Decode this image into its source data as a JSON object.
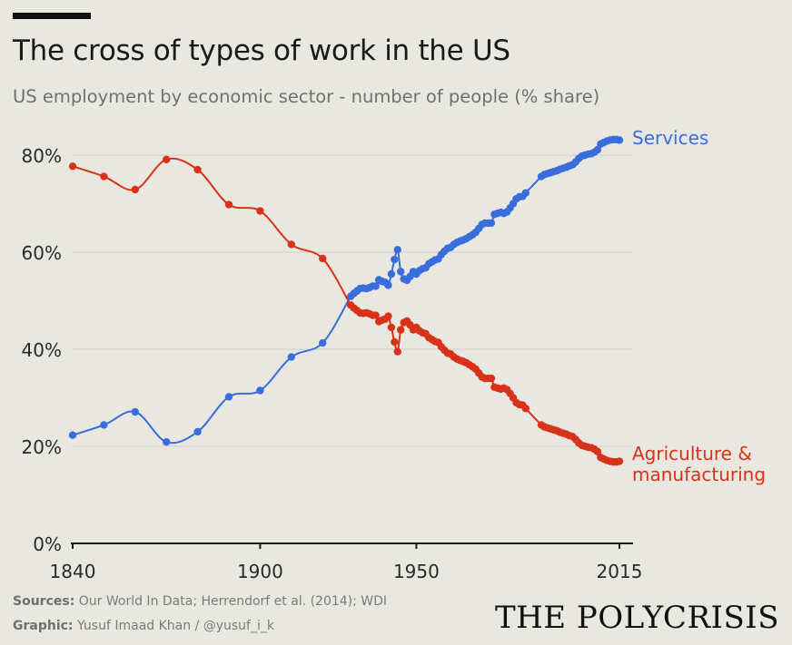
{
  "header": {
    "title": "The cross of types of work in the US",
    "subtitle": "US employment by economic sector - number of people (% share)"
  },
  "footer": {
    "sources_label": "Sources:",
    "sources_text": "Our World In Data; Herrendorf et al. (2014); WDI",
    "graphic_label": "Graphic:",
    "graphic_text": "Yusuf Imaad Khan / @yusuf_i_k"
  },
  "brand": {
    "name": "THE POLYCRISIS"
  },
  "chart_data": {
    "type": "line",
    "title": "The cross of types of work in the US",
    "subtitle": "US employment by economic sector - number of people (% share)",
    "xlabel": "",
    "ylabel": "",
    "xlim": [
      1840,
      2015
    ],
    "ylim": [
      0,
      80
    ],
    "x_ticks": [
      1840,
      1900,
      1950,
      2015
    ],
    "x_tick_labels": [
      "1840",
      "1900",
      "1950",
      "2015"
    ],
    "y_ticks": [
      0,
      20,
      40,
      60,
      80
    ],
    "y_tick_labels": [
      "0%",
      "20%",
      "40%",
      "60%",
      "80%"
    ],
    "grid": "horizontal",
    "legend": "direct labels at line ends",
    "series": [
      {
        "name": "Services",
        "color": "#3a6ddc",
        "label_lines": [
          "Services"
        ],
        "points": [
          [
            1840,
            22.3
          ],
          [
            1850,
            24.4
          ],
          [
            1860,
            27.1
          ],
          [
            1870,
            20.9
          ],
          [
            1880,
            23.0
          ],
          [
            1890,
            30.2
          ],
          [
            1900,
            31.5
          ],
          [
            1910,
            38.4
          ],
          [
            1920,
            41.3
          ],
          [
            1929,
            50.9
          ],
          [
            1930,
            51.5
          ],
          [
            1931,
            52.0
          ],
          [
            1932,
            52.5
          ],
          [
            1933,
            52.6
          ],
          [
            1934,
            52.5
          ],
          [
            1935,
            52.7
          ],
          [
            1936,
            53.0
          ],
          [
            1937,
            53.0
          ],
          [
            1938,
            54.3
          ],
          [
            1939,
            54.0
          ],
          [
            1940,
            53.8
          ],
          [
            1941,
            53.2
          ],
          [
            1942,
            55.5
          ],
          [
            1943,
            58.5
          ],
          [
            1944,
            60.5
          ],
          [
            1945,
            56.0
          ],
          [
            1946,
            54.5
          ],
          [
            1947,
            54.2
          ],
          [
            1948,
            55.0
          ],
          [
            1949,
            56.0
          ],
          [
            1950,
            55.5
          ],
          [
            1951,
            56.2
          ],
          [
            1952,
            56.6
          ],
          [
            1953,
            56.8
          ],
          [
            1954,
            57.6
          ],
          [
            1955,
            58.0
          ],
          [
            1956,
            58.4
          ],
          [
            1957,
            58.6
          ],
          [
            1958,
            59.5
          ],
          [
            1959,
            60.2
          ],
          [
            1960,
            60.8
          ],
          [
            1961,
            61.0
          ],
          [
            1962,
            61.6
          ],
          [
            1963,
            62.0
          ],
          [
            1964,
            62.3
          ],
          [
            1965,
            62.5
          ],
          [
            1966,
            62.8
          ],
          [
            1967,
            63.2
          ],
          [
            1968,
            63.6
          ],
          [
            1969,
            64.1
          ],
          [
            1970,
            64.9
          ],
          [
            1971,
            65.7
          ],
          [
            1972,
            66.0
          ],
          [
            1973,
            66.0
          ],
          [
            1974,
            66.0
          ],
          [
            1975,
            67.8
          ],
          [
            1976,
            68.0
          ],
          [
            1977,
            68.2
          ],
          [
            1978,
            68.0
          ],
          [
            1979,
            68.3
          ],
          [
            1980,
            69.1
          ],
          [
            1981,
            70.0
          ],
          [
            1982,
            71.0
          ],
          [
            1983,
            71.4
          ],
          [
            1984,
            71.5
          ],
          [
            1985,
            72.2
          ],
          [
            1990,
            75.6
          ],
          [
            1991,
            76.0
          ],
          [
            1992,
            76.2
          ],
          [
            1993,
            76.4
          ],
          [
            1994,
            76.6
          ],
          [
            1995,
            76.8
          ],
          [
            1996,
            77.1
          ],
          [
            1997,
            77.3
          ],
          [
            1998,
            77.5
          ],
          [
            1999,
            77.8
          ],
          [
            2000,
            78.0
          ],
          [
            2001,
            78.6
          ],
          [
            2002,
            79.3
          ],
          [
            2003,
            79.8
          ],
          [
            2004,
            80.0
          ],
          [
            2005,
            80.2
          ],
          [
            2006,
            80.3
          ],
          [
            2007,
            80.6
          ],
          [
            2008,
            81.1
          ],
          [
            2009,
            82.3
          ],
          [
            2010,
            82.6
          ],
          [
            2011,
            82.9
          ],
          [
            2012,
            83.1
          ],
          [
            2013,
            83.2
          ],
          [
            2014,
            83.2
          ],
          [
            2015,
            83.1
          ]
        ]
      },
      {
        "name": "Agriculture & manufacturing",
        "color": "#d8321a",
        "label_lines": [
          "Agriculture &",
          "manufacturing"
        ],
        "points": [
          [
            1840,
            77.7
          ],
          [
            1850,
            75.6
          ],
          [
            1860,
            72.9
          ],
          [
            1870,
            79.1
          ],
          [
            1880,
            77.0
          ],
          [
            1890,
            69.8
          ],
          [
            1900,
            68.5
          ],
          [
            1910,
            61.6
          ],
          [
            1920,
            58.7
          ],
          [
            1929,
            49.1
          ],
          [
            1930,
            48.5
          ],
          [
            1931,
            48.0
          ],
          [
            1932,
            47.5
          ],
          [
            1933,
            47.4
          ],
          [
            1934,
            47.5
          ],
          [
            1935,
            47.3
          ],
          [
            1936,
            47.0
          ],
          [
            1937,
            47.0
          ],
          [
            1938,
            45.7
          ],
          [
            1939,
            46.0
          ],
          [
            1940,
            46.2
          ],
          [
            1941,
            46.8
          ],
          [
            1942,
            44.5
          ],
          [
            1943,
            41.5
          ],
          [
            1944,
            39.5
          ],
          [
            1945,
            44.0
          ],
          [
            1946,
            45.5
          ],
          [
            1947,
            45.8
          ],
          [
            1948,
            45.0
          ],
          [
            1949,
            44.0
          ],
          [
            1950,
            44.5
          ],
          [
            1951,
            43.8
          ],
          [
            1952,
            43.4
          ],
          [
            1953,
            43.2
          ],
          [
            1954,
            42.4
          ],
          [
            1955,
            42.0
          ],
          [
            1956,
            41.6
          ],
          [
            1957,
            41.4
          ],
          [
            1958,
            40.5
          ],
          [
            1959,
            39.8
          ],
          [
            1960,
            39.2
          ],
          [
            1961,
            39.0
          ],
          [
            1962,
            38.4
          ],
          [
            1963,
            38.0
          ],
          [
            1964,
            37.7
          ],
          [
            1965,
            37.5
          ],
          [
            1966,
            37.2
          ],
          [
            1967,
            36.8
          ],
          [
            1968,
            36.4
          ],
          [
            1969,
            35.9
          ],
          [
            1970,
            35.1
          ],
          [
            1971,
            34.3
          ],
          [
            1972,
            34.0
          ],
          [
            1973,
            34.0
          ],
          [
            1974,
            34.0
          ],
          [
            1975,
            32.2
          ],
          [
            1976,
            32.0
          ],
          [
            1977,
            31.8
          ],
          [
            1978,
            32.0
          ],
          [
            1979,
            31.7
          ],
          [
            1980,
            30.9
          ],
          [
            1981,
            30.0
          ],
          [
            1982,
            29.0
          ],
          [
            1983,
            28.6
          ],
          [
            1984,
            28.5
          ],
          [
            1985,
            27.8
          ],
          [
            1990,
            24.4
          ],
          [
            1991,
            24.0
          ],
          [
            1992,
            23.8
          ],
          [
            1993,
            23.6
          ],
          [
            1994,
            23.4
          ],
          [
            1995,
            23.2
          ],
          [
            1996,
            22.9
          ],
          [
            1997,
            22.7
          ],
          [
            1998,
            22.5
          ],
          [
            1999,
            22.2
          ],
          [
            2000,
            22.0
          ],
          [
            2001,
            21.4
          ],
          [
            2002,
            20.7
          ],
          [
            2003,
            20.2
          ],
          [
            2004,
            20.0
          ],
          [
            2005,
            19.8
          ],
          [
            2006,
            19.7
          ],
          [
            2007,
            19.4
          ],
          [
            2008,
            18.9
          ],
          [
            2009,
            17.7
          ],
          [
            2010,
            17.4
          ],
          [
            2011,
            17.1
          ],
          [
            2012,
            16.9
          ],
          [
            2013,
            16.8
          ],
          [
            2014,
            16.8
          ],
          [
            2015,
            16.9
          ]
        ]
      }
    ]
  }
}
